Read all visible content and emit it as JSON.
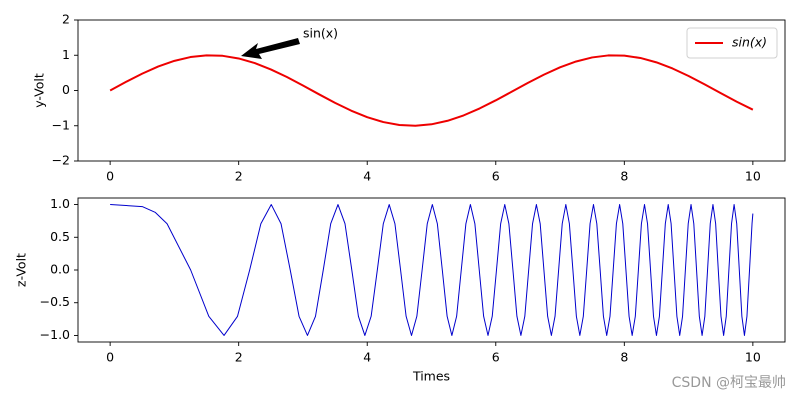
{
  "chart_data": [
    {
      "type": "line",
      "ylabel": "y-Volt",
      "annotation": "sin(x)",
      "legend": "upper right",
      "xlim": [
        -0.5,
        10.5
      ],
      "xticks": [
        0,
        2,
        4,
        6,
        8,
        10
      ],
      "ylim": [
        -2,
        2
      ],
      "yticks": [
        {
          "value": -2,
          "label": "−2"
        },
        {
          "value": -1,
          "label": "−1"
        },
        0,
        1,
        2
      ],
      "x": [
        0,
        0.25,
        0.5,
        0.75,
        1,
        1.25,
        1.5,
        1.75,
        2,
        2.25,
        2.5,
        2.75,
        3,
        3.25,
        3.5,
        3.75,
        4,
        4.25,
        4.5,
        4.75,
        5,
        5.25,
        5.5,
        5.75,
        6,
        6.25,
        6.5,
        6.75,
        7,
        7.25,
        7.5,
        7.75,
        8,
        8.25,
        8.5,
        8.75,
        9,
        9.25,
        9.5,
        9.75,
        10
      ],
      "series": [
        {
          "name": "sin(x)",
          "color": "#ee0000",
          "values": [
            0,
            0.247,
            0.479,
            0.682,
            0.841,
            0.949,
            0.997,
            0.984,
            0.909,
            0.778,
            0.598,
            0.382,
            0.141,
            -0.108,
            -0.351,
            -0.572,
            -0.757,
            -0.895,
            -0.978,
            -0.999,
            -0.959,
            -0.859,
            -0.706,
            -0.508,
            -0.279,
            -0.033,
            0.215,
            0.45,
            0.657,
            0.823,
            0.938,
            0.995,
            0.989,
            0.923,
            0.798,
            0.625,
            0.412,
            0.173,
            -0.075,
            -0.319,
            -0.544
          ]
        }
      ]
    },
    {
      "type": "line",
      "ylabel": "z-Volt",
      "xlabel": "Times",
      "xlim": [
        -0.5,
        10.5
      ],
      "xticks": [
        0,
        2,
        4,
        6,
        8,
        10
      ],
      "ylim": [
        -1.1,
        1.1
      ],
      "yticks": [
        {
          "value": -1,
          "label": "−1.0"
        },
        {
          "value": -0.5,
          "label": "−0.5"
        },
        {
          "value": 0,
          "label": "0.0"
        },
        0.5,
        {
          "value": 1,
          "label": "1.0"
        }
      ],
      "x": [
        0,
        0.5,
        0.7,
        0.886,
        1.253,
        1.535,
        1.772,
        1.982,
        2.171,
        2.345,
        2.507,
        2.659,
        2.802,
        2.939,
        3.07,
        3.195,
        3.316,
        3.432,
        3.545,
        3.654,
        3.76,
        3.863,
        3.963,
        4.061,
        4.157,
        4.25,
        4.342,
        4.431,
        4.519,
        4.605,
        4.689,
        4.772,
        4.854,
        4.934,
        5.013,
        5.091,
        5.168,
        5.243,
        5.317,
        5.391,
        5.463,
        5.535,
        5.605,
        5.675,
        5.743,
        5.811,
        5.879,
        5.945,
        6.011,
        6.076,
        6.14,
        6.204,
        6.267,
        6.329,
        6.391,
        6.452,
        6.512,
        6.572,
        6.632,
        6.691,
        6.749,
        6.807,
        6.865,
        6.922,
        6.978,
        7.034,
        7.09,
        7.145,
        7.2,
        7.254,
        7.308,
        7.362,
        7.415,
        7.467,
        7.52,
        7.572,
        7.624,
        7.675,
        7.726,
        7.777,
        7.827,
        7.877,
        7.927,
        7.976,
        8.025,
        8.074,
        8.122,
        8.171,
        8.219,
        8.266,
        8.314,
        8.361,
        8.408,
        8.454,
        8.5,
        8.546,
        8.592,
        8.638,
        8.683,
        8.728,
        8.773,
        8.818,
        8.862,
        8.906,
        8.95,
        8.994,
        9.038,
        9.081,
        9.124,
        9.167,
        9.21,
        9.253,
        9.295,
        9.337,
        9.379,
        9.421,
        9.462,
        9.504,
        9.545,
        9.586,
        9.627,
        9.668,
        9.708,
        9.749,
        9.789,
        9.829,
        9.869,
        9.908,
        9.948,
        9.987,
        10
      ],
      "series": [
        {
          "color": "#0000cc",
          "values": [
            1,
            0.969,
            0.882,
            0.707,
            0,
            -0.707,
            -1,
            -0.707,
            0,
            0.707,
            1,
            0.707,
            0,
            -0.707,
            -1,
            -0.707,
            0,
            0.707,
            1,
            0.707,
            0,
            -0.707,
            -1,
            -0.707,
            0,
            0.707,
            1,
            0.707,
            0,
            -0.707,
            -1,
            -0.707,
            0,
            0.707,
            1,
            0.707,
            0,
            -0.707,
            -1,
            -0.707,
            0,
            0.707,
            1,
            0.707,
            0,
            -0.707,
            -1,
            -0.707,
            0,
            0.707,
            1,
            0.707,
            0,
            -0.707,
            -1,
            -0.707,
            0,
            0.707,
            1,
            0.707,
            0,
            -0.707,
            -1,
            -0.707,
            0,
            0.707,
            1,
            0.707,
            0,
            -0.707,
            -1,
            -0.707,
            0,
            0.707,
            1,
            0.707,
            0,
            -0.707,
            -1,
            -0.707,
            0,
            0.707,
            1,
            0.707,
            0,
            -0.707,
            -1,
            -0.707,
            0,
            0.707,
            1,
            0.707,
            0,
            -0.707,
            -1,
            -0.707,
            0,
            0.707,
            1,
            0.707,
            0,
            -0.707,
            -1,
            -0.707,
            0,
            0.707,
            1,
            0.707,
            0,
            -0.707,
            -1,
            -0.707,
            0,
            0.707,
            1,
            0.707,
            0,
            -0.707,
            -1,
            -0.707,
            0,
            0.707,
            1,
            0.707,
            0,
            -0.707,
            -1,
            -0.707,
            0,
            0.707,
            0.862
          ]
        }
      ]
    }
  ],
  "watermark": "CSDN @柯宝最帅"
}
